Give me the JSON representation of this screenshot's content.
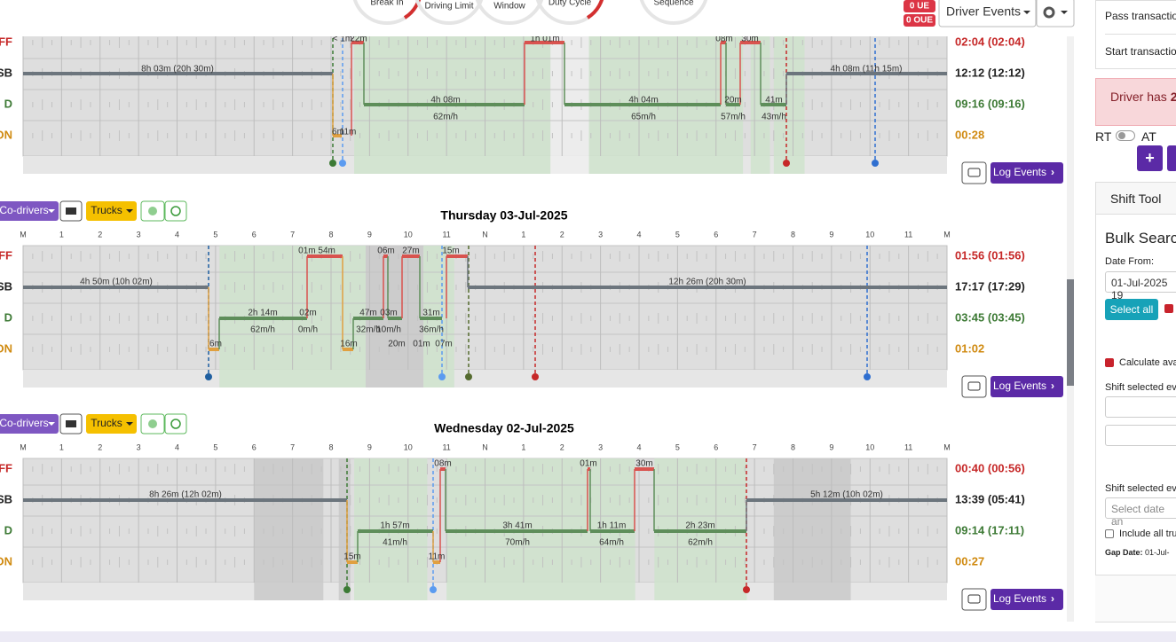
{
  "gauges": [
    "Break In",
    "Driving Limit",
    "Window",
    "Duty Cycle",
    "Sequence"
  ],
  "badges": [
    "0 UE",
    "0 OUE"
  ],
  "driver_events": "Driver Events",
  "hour_labels": [
    "M",
    "1",
    "2",
    "3",
    "4",
    "5",
    "6",
    "7",
    "8",
    "9",
    "10",
    "11",
    "N",
    "1",
    "2",
    "3",
    "4",
    "5",
    "6",
    "7",
    "8",
    "9",
    "10",
    "11",
    "M"
  ],
  "row_labels": [
    "FF",
    "SB",
    "D",
    "ON"
  ],
  "toolbar": {
    "co_drivers": "Co-drivers",
    "trucks": "Trucks",
    "log_events": "Log Events"
  },
  "logs": [
    {
      "totals": [
        "02:04 (02:04)",
        "12:12 (12:12)",
        "09:16 (09:16)",
        "00:28"
      ],
      "labels": [
        "8h 03m (20h 30m)",
        "< 1m",
        "22m",
        "1h 01m",
        "08m",
        "30m",
        "4h 08m (11h 15m)",
        "4h 08m",
        "62m/h",
        "4h 04m",
        "65m/h",
        "20m",
        "57m/h",
        "41m",
        "43m/h",
        "6m",
        "11m"
      ]
    },
    {
      "title": "Thursday 03-Jul-2025",
      "totals": [
        "01:56 (01:56)",
        "17:17 (17:29)",
        "03:45 (03:45)",
        "01:02"
      ],
      "labels": [
        "4h 50m (10h 02m)",
        "01m 54m",
        "06m",
        "27m",
        "15m",
        "12h 26m (20h 30m)",
        "2h 14m",
        "62m/h",
        "02m",
        "0m/h",
        "47m",
        "03m",
        "32m/h",
        "10m/h",
        "31m",
        "36m/h",
        "6m",
        "16m",
        "20m",
        "01m",
        "07m"
      ]
    },
    {
      "title": "Wednesday 02-Jul-2025",
      "totals": [
        "00:40 (00:56)",
        "13:39 (05:41)",
        "09:14 (17:11)",
        "00:27"
      ],
      "labels": [
        "8h 26m (12h 02m)",
        "08m",
        "01m",
        "30m",
        "5h 12m (10h 02m)",
        "1h 57m",
        "41m/h",
        "3h 41m",
        "70m/h",
        "1h 11m",
        "64m/h",
        "2h 23m",
        "62m/h",
        "15m",
        "11m"
      ]
    }
  ],
  "side": {
    "pass": "Pass transaction",
    "start": "Start transaction",
    "alert": "Driver has",
    "alert_bold": "2",
    "rt": "RT",
    "at": "AT",
    "plus": "+",
    "shift_tool": "Shift Tool",
    "bulk_search": "Bulk Search",
    "date_from": "Date From:",
    "date_value": "01-Jul-2025 19",
    "select_all": "Select all",
    "calculate": "Calculate ava",
    "shift_selected_1": "Shift selected ev",
    "shift_selected_2": "Shift selected ev",
    "date_placeholder": "Select date an",
    "include": "Include all tru",
    "gap_label": "Gap Date:",
    "gap_value": "01-Jul-"
  }
}
